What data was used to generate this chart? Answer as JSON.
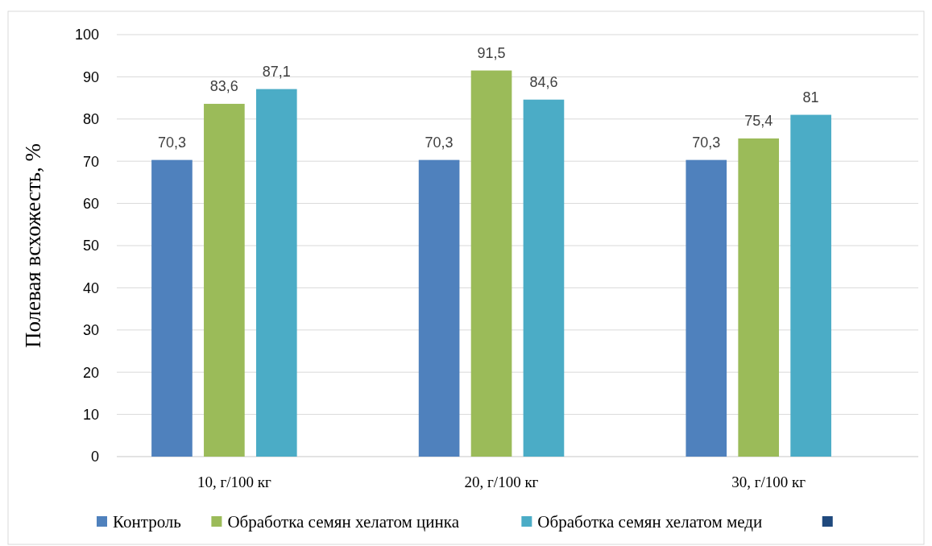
{
  "chart_data": {
    "type": "bar",
    "ylabel": "Полевая всхожесть, %",
    "categories": [
      "10, г/100 кг",
      "20, г/100 кг",
      "30, г/100 кг"
    ],
    "series": [
      {
        "name": "Контроль",
        "color": "#4f81bd",
        "values": [
          70.3,
          70.3,
          70.3
        ],
        "value_labels": [
          "70,3",
          "70,3",
          "70,3"
        ]
      },
      {
        "name": "Обработка семян хелатом цинка",
        "color": "#9bbb59",
        "values": [
          83.6,
          91.5,
          75.4
        ],
        "value_labels": [
          "83,6",
          "91,5",
          "75,4"
        ]
      },
      {
        "name": "Обработка семян хелатом меди",
        "color": "#4bacc6",
        "values": [
          87.1,
          84.6,
          81
        ],
        "value_labels": [
          "87,1",
          "84,6",
          "81"
        ]
      },
      {
        "color": "#1f497d",
        "values": [
          null,
          null,
          null
        ]
      }
    ],
    "ylim": [
      0,
      100
    ],
    "yticks": [
      0,
      10,
      20,
      30,
      40,
      50,
      60,
      70,
      80,
      90,
      100
    ],
    "grid": "y",
    "legend": "bottom"
  }
}
